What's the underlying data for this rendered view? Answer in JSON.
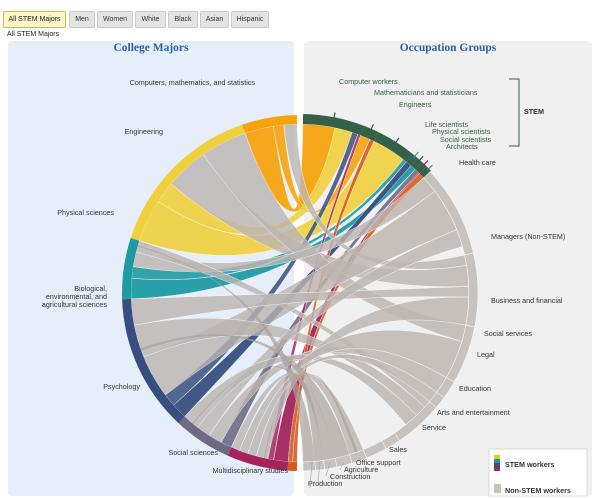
{
  "tabs": [
    {
      "label": "All STEM Majors",
      "active": true
    },
    {
      "label": "Men",
      "active": false
    },
    {
      "label": "Women",
      "active": false
    },
    {
      "label": "White",
      "active": false
    },
    {
      "label": "Black",
      "active": false
    },
    {
      "label": "Asian",
      "active": false
    },
    {
      "label": "Hispanic",
      "active": false
    }
  ],
  "subtitle": "All STEM Majors",
  "panels": {
    "left_title": "College Majors",
    "right_title": "Occupation Groups"
  },
  "majors": [
    {
      "label": "Computers, mathematics, and statistics",
      "color": "#f5a30f"
    },
    {
      "label": "Engineering",
      "color": "#f0cf3c"
    },
    {
      "label": "Physical sciences",
      "color": "#1f9aa3"
    },
    {
      "label": "Biological, environmental, and agricultural sciences",
      "color": "#374f80"
    },
    {
      "label": "Psychology",
      "color": "#6e6a86"
    },
    {
      "label": "Social sciences",
      "color": "#a4245b"
    },
    {
      "label": "Multidisciplinary studies",
      "color": "#d75a1e"
    }
  ],
  "occupations": [
    {
      "label": "Computer workers",
      "stem": true
    },
    {
      "label": "Mathematicians and statisticians",
      "stem": true
    },
    {
      "label": "Engineers",
      "stem": true
    },
    {
      "label": "Life scientists",
      "stem": true
    },
    {
      "label": "Physical scientists",
      "stem": true
    },
    {
      "label": "Social scientists",
      "stem": true
    },
    {
      "label": "Architects",
      "stem": true
    },
    {
      "label": "Health care",
      "stem": false
    },
    {
      "label": "Managers (Non-STEM)",
      "stem": false
    },
    {
      "label": "Business and financial",
      "stem": false
    },
    {
      "label": "Social services",
      "stem": false
    },
    {
      "label": "Legal",
      "stem": false
    },
    {
      "label": "Education",
      "stem": false
    },
    {
      "label": "Arts and entertainment",
      "stem": false
    },
    {
      "label": "Service",
      "stem": false
    },
    {
      "label": "Sales",
      "stem": false
    },
    {
      "label": "Office support",
      "stem": false
    },
    {
      "label": "Agriculture",
      "stem": false
    },
    {
      "label": "Construction",
      "stem": false
    },
    {
      "label": "Production",
      "stem": false
    }
  ],
  "stem_bracket_label": "STEM",
  "legend": {
    "stem_label": "STEM workers",
    "nonstem_label": "Non-STEM workers"
  },
  "colors": {
    "stem_arc": "#356149",
    "nonstem_arc": "#c8c2bf",
    "nonstem_ribbon": "#bcb4b0",
    "panel_left": "#e6eff9",
    "panel_right": "#f0f0f0",
    "title": "#2b64a6"
  }
}
